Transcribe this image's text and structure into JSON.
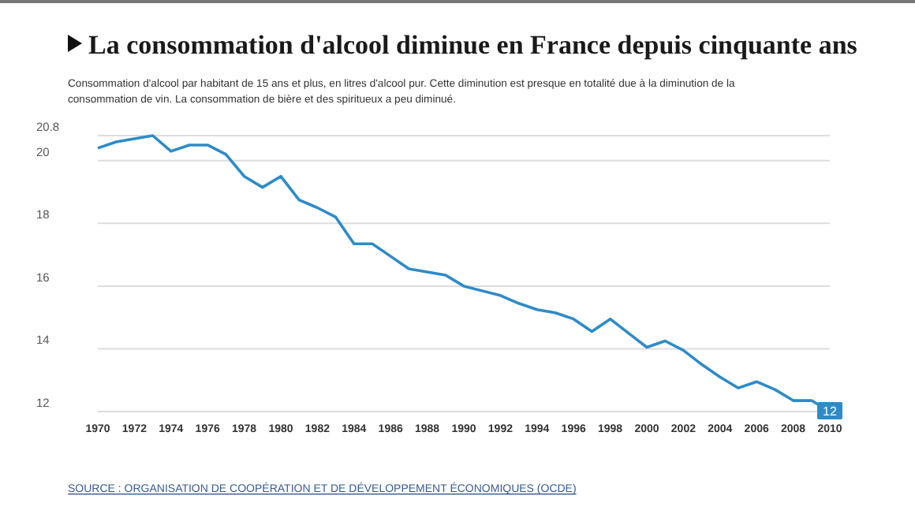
{
  "chart_data": {
    "type": "line",
    "title": "La consommation d'alcool diminue en France depuis cinquante ans",
    "subtitle": "Consommation d'alcool par habitant de 15 ans et plus, en litres d'alcool pur. Cette diminution est presque en totalité due à la diminution de la consommation de vin. La consommation de bière et des spiritueux a peu diminué.",
    "annotations": [
      "SOURCE : ORGANISATION DE COOPÉRATION ET DE DÉVELOPPEMENT ÉCONOMIQUES (OCDE)"
    ],
    "x": [
      1970,
      1971,
      1972,
      1973,
      1974,
      1975,
      1976,
      1977,
      1978,
      1979,
      1980,
      1981,
      1982,
      1983,
      1984,
      1985,
      1986,
      1987,
      1988,
      1989,
      1990,
      1991,
      1992,
      1993,
      1994,
      1995,
      1996,
      1997,
      1998,
      1999,
      2000,
      2001,
      2002,
      2003,
      2004,
      2005,
      2006,
      2007,
      2008,
      2009,
      2010
    ],
    "series": [
      {
        "color": "#2e8bc8",
        "values": [
          20.4,
          20.6,
          20.7,
          20.8,
          20.3,
          20.5,
          20.5,
          20.2,
          19.5,
          19.15,
          19.5,
          18.75,
          18.5,
          18.2,
          17.35,
          17.35,
          16.95,
          16.55,
          16.45,
          16.35,
          16.0,
          15.85,
          15.7,
          15.45,
          15.25,
          15.15,
          14.95,
          14.55,
          14.95,
          14.5,
          14.05,
          14.25,
          13.95,
          13.5,
          13.1,
          12.75,
          12.95,
          12.7,
          12.35,
          12.35,
          12
        ],
        "value_labels": [
          null,
          null,
          null,
          null,
          null,
          null,
          null,
          null,
          null,
          null,
          null,
          null,
          null,
          null,
          null,
          null,
          null,
          null,
          null,
          null,
          null,
          null,
          null,
          null,
          null,
          null,
          null,
          null,
          null,
          null,
          null,
          null,
          null,
          null,
          null,
          null,
          null,
          null,
          null,
          null,
          "12"
        ]
      }
    ],
    "xlim": [
      1970,
      2010
    ],
    "xticks": [
      1970,
      1972,
      1974,
      1976,
      1978,
      1980,
      1982,
      1984,
      1986,
      1988,
      1990,
      1992,
      1994,
      1996,
      1998,
      2000,
      2002,
      2004,
      2006,
      2008,
      2010
    ],
    "ylim": [
      12,
      20.8
    ],
    "yticks": [
      12,
      14,
      16,
      18,
      20,
      20.8
    ],
    "grid": "y",
    "marker": "none",
    "line_style": "solid"
  }
}
